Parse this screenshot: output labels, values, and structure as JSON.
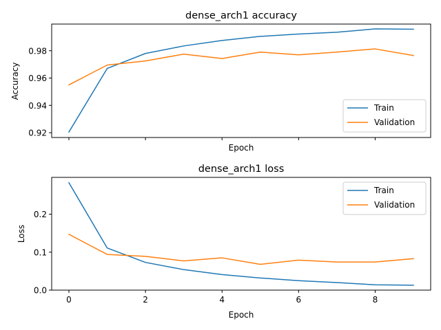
{
  "chart_data": [
    {
      "type": "line",
      "title": "dense_arch1 accuracy",
      "xlabel": "Epoch",
      "ylabel": "Accuracy",
      "x": [
        0,
        1,
        2,
        3,
        4,
        5,
        6,
        7,
        8,
        9
      ],
      "xlim": [
        -0.45,
        9.45
      ],
      "ylim": [
        0.9165,
        0.9995
      ],
      "xticks": [
        0,
        2,
        4,
        6,
        8
      ],
      "xtick_labels": [
        "",
        "",
        "",
        "",
        ""
      ],
      "yticks": [
        0.92,
        0.94,
        0.96,
        0.98
      ],
      "ytick_labels": [
        "0.92",
        "0.94",
        "0.96",
        "0.98"
      ],
      "grid": false,
      "legend_position": "lower right",
      "series": [
        {
          "name": "Train",
          "color": "#1f77b4",
          "values": [
            0.9205,
            0.967,
            0.978,
            0.9835,
            0.9875,
            0.9905,
            0.9922,
            0.9935,
            0.996,
            0.9957
          ]
        },
        {
          "name": "Validation",
          "color": "#ff7f0e",
          "values": [
            0.955,
            0.9695,
            0.9725,
            0.9775,
            0.9743,
            0.979,
            0.977,
            0.979,
            0.9813,
            0.9765
          ]
        }
      ]
    },
    {
      "type": "line",
      "title": "dense_arch1 loss",
      "xlabel": "Epoch",
      "ylabel": "Loss",
      "x": [
        0,
        1,
        2,
        3,
        4,
        5,
        6,
        7,
        8,
        9
      ],
      "xlim": [
        -0.45,
        9.45
      ],
      "ylim": [
        0,
        0.297
      ],
      "xticks": [
        0,
        2,
        4,
        6,
        8
      ],
      "xtick_labels": [
        "0",
        "2",
        "4",
        "6",
        "8"
      ],
      "yticks": [
        0.0,
        0.1,
        0.2
      ],
      "ytick_labels": [
        "0.0",
        "0.1",
        "0.2"
      ],
      "grid": false,
      "legend_position": "upper right",
      "series": [
        {
          "name": "Train",
          "color": "#1f77b4",
          "values": [
            0.283,
            0.111,
            0.073,
            0.054,
            0.041,
            0.032,
            0.025,
            0.02,
            0.014,
            0.013
          ]
        },
        {
          "name": "Validation",
          "color": "#ff7f0e",
          "values": [
            0.147,
            0.094,
            0.089,
            0.077,
            0.085,
            0.068,
            0.079,
            0.074,
            0.074,
            0.083
          ]
        }
      ]
    }
  ]
}
